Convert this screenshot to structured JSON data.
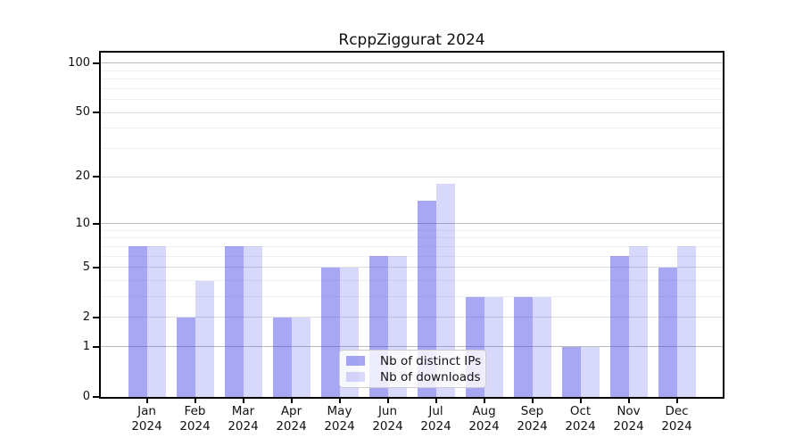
{
  "header": {
    "title": "RcppZiggurat 2024"
  },
  "chart_data": {
    "type": "bar",
    "title": "RcppZiggurat 2024",
    "categories": [
      "Jan",
      "Feb",
      "Mar",
      "Apr",
      "May",
      "Jun",
      "Jul",
      "Aug",
      "Sep",
      "Oct",
      "Nov",
      "Dec"
    ],
    "category_year": "2024",
    "series": [
      {
        "name": "Nb of distinct IPs",
        "fill": "rgba(60,60,230,0.45)",
        "color_on_white": "#a7a7f4",
        "values": [
          7,
          2,
          7,
          2,
          5,
          6,
          14,
          3,
          3,
          1,
          6,
          5
        ]
      },
      {
        "name": "Nb of downloads",
        "fill": "rgba(60,60,230,0.2)",
        "color_on_white": "#d9d9fa",
        "values": [
          7,
          4,
          7,
          2,
          5,
          6,
          18,
          3,
          3,
          1,
          7,
          7
        ]
      }
    ],
    "xlabel": "",
    "ylabel": "",
    "yscale": "log1p",
    "ylim": [
      0,
      116
    ],
    "yticks": [
      0,
      1,
      2,
      5,
      10,
      20,
      50,
      100
    ],
    "minor_gridlines": [
      3,
      4,
      6,
      7,
      8,
      9,
      30,
      40,
      60,
      70,
      80,
      90
    ],
    "grid": true,
    "legend_position": "lower center",
    "colors": {
      "axis": "#000000",
      "gridline_decade": "#bbbbbb",
      "gridline_major": "#dddddd",
      "gridline_minor": "#f0f0f0",
      "text": "#111111"
    }
  },
  "legend": {
    "items": [
      {
        "label": "Nb of distinct IPs",
        "swatch_color": "rgba(60,60,230,0.45)"
      },
      {
        "label": "Nb of downloads",
        "swatch_color": "rgba(60,60,230,0.2)"
      }
    ]
  }
}
